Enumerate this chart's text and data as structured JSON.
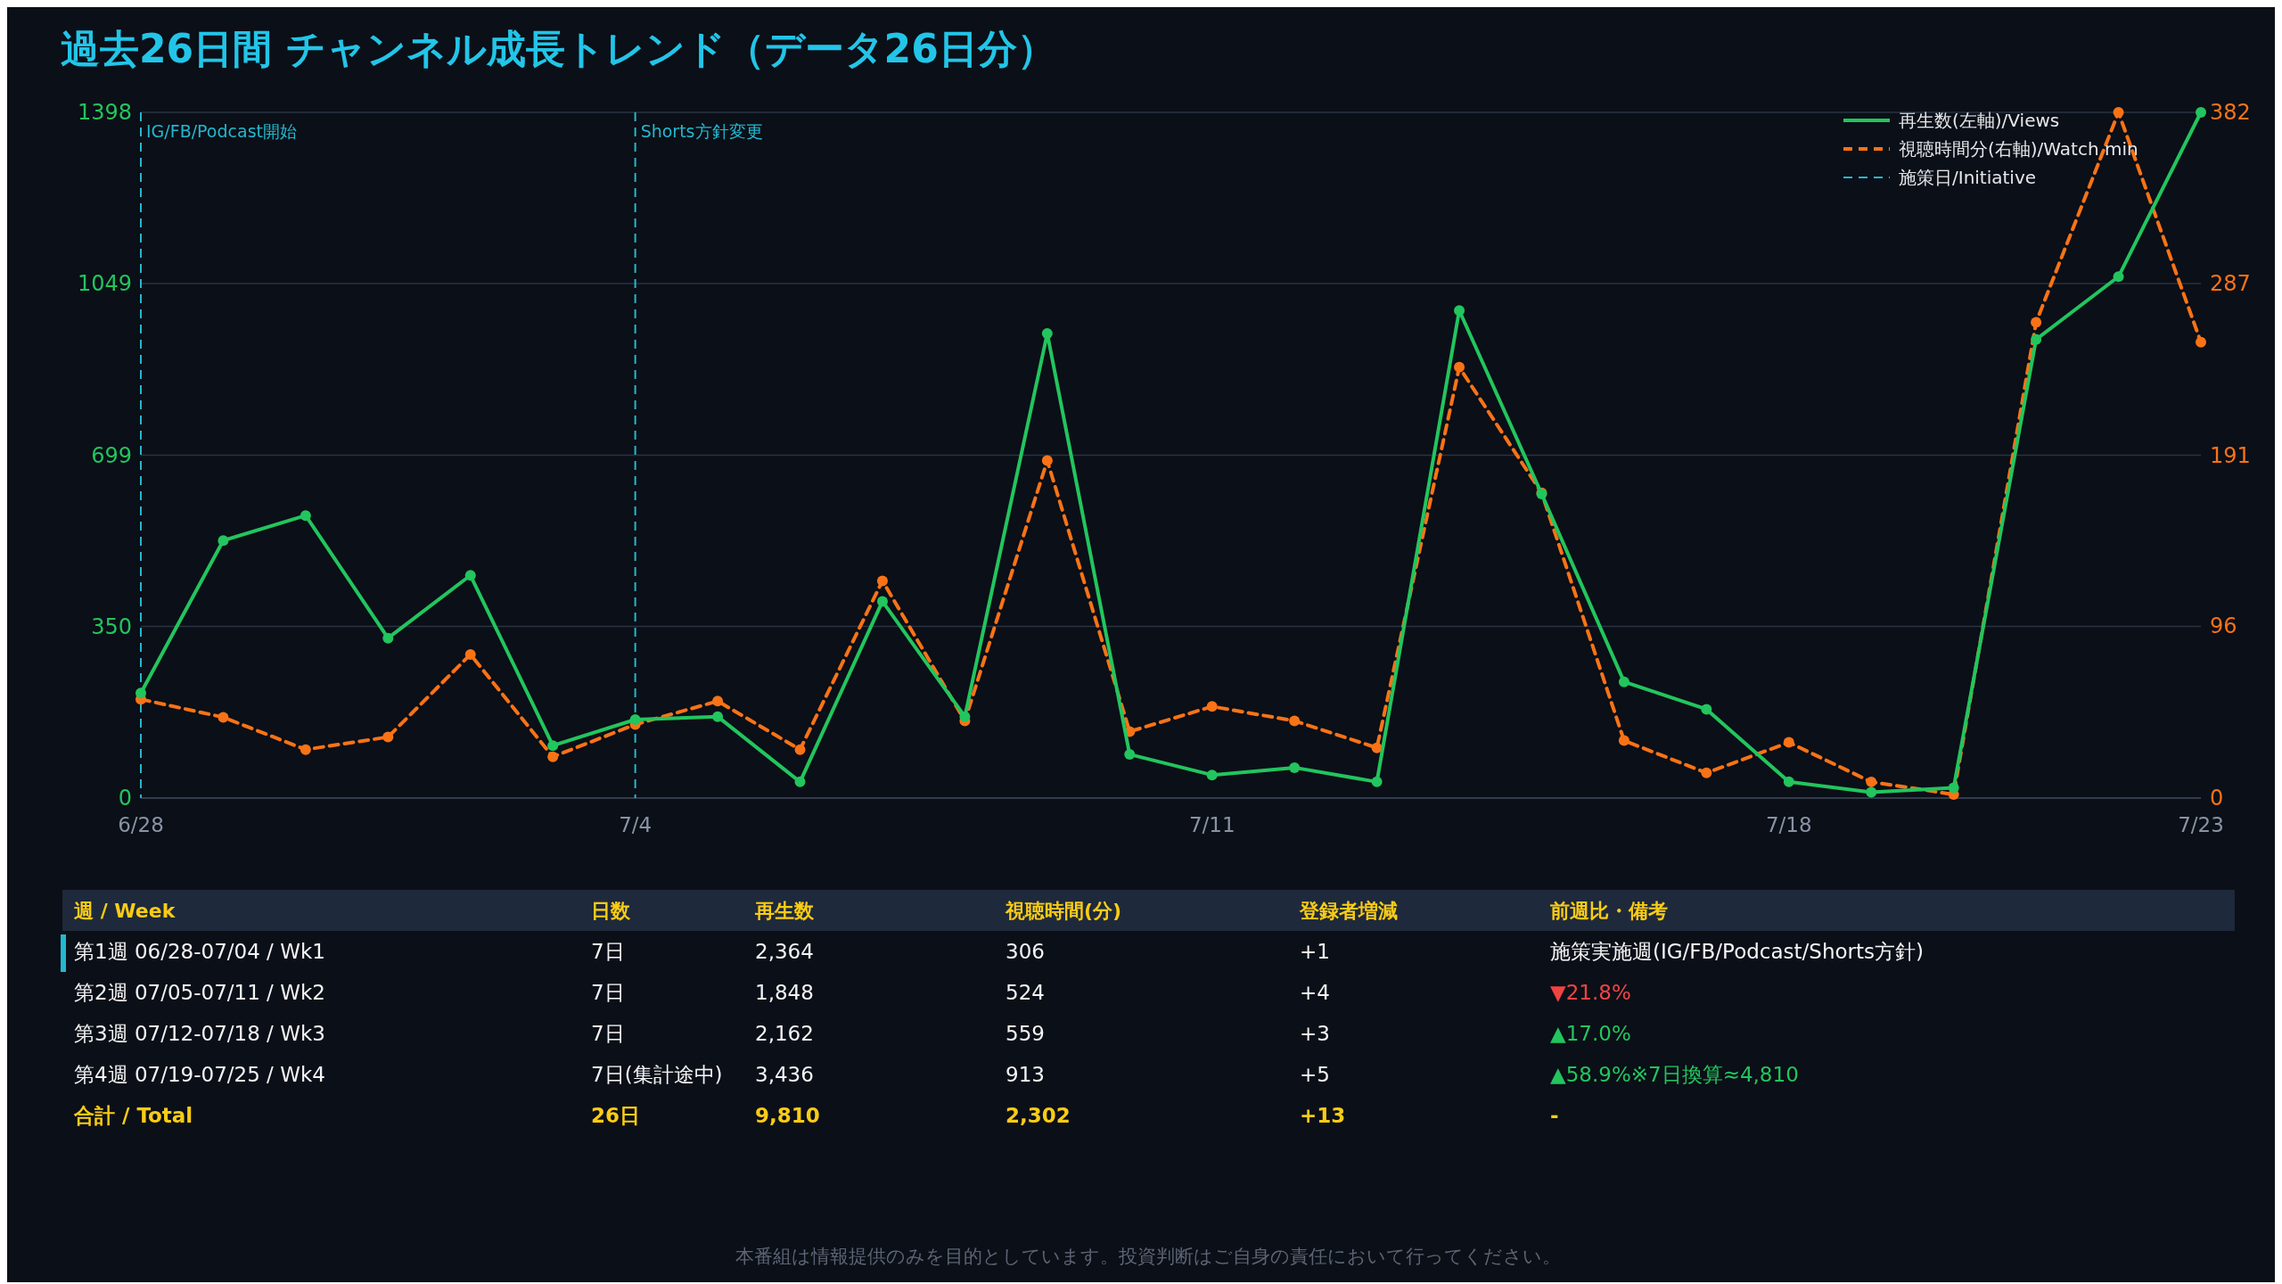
{
  "chart_data": [
    {
      "type": "line",
      "title": "過去26日間 チャンネル成長トレンド（データ26日分）",
      "x": [
        "--06-28",
        "--06-29",
        "--06-30",
        "--07-01",
        "--07-02",
        "--07-03",
        "--07-04",
        "--07-05",
        "--07-06",
        "--07-07",
        "--07-08",
        "--07-09",
        "--07-10",
        "--07-11",
        "--07-12",
        "--07-13",
        "--07-14",
        "--07-15",
        "--07-16",
        "--07-17",
        "--07-18",
        "--07-19",
        "--07-20",
        "--07-21",
        "--07-22",
        "--07-23"
      ],
      "series": [
        {
          "name": "再生数(左軸)/Views",
          "color": "#22c55e",
          "line_style": "solid",
          "values": [
            214,
            525,
            576,
            326,
            454,
            107,
            160,
            166,
            33,
            401,
            166,
            947,
            89,
            47,
            62,
            33,
            994,
            620,
            237,
            181,
            33,
            12,
            21,
            935,
            1063,
            1398
          ]
        },
        {
          "name": "視聴時間分(右軸)/Watch min",
          "color": "#f97316",
          "line_style": "dashed",
          "axis": "y2",
          "values": [
            55,
            45,
            27,
            34,
            80,
            23,
            41,
            54,
            27,
            121,
            43,
            188,
            37,
            51,
            43,
            28,
            240,
            170,
            32,
            14,
            31,
            9,
            2,
            265,
            382,
            254
          ]
        }
      ],
      "xlim": [
        "--06-28",
        "--07-23"
      ],
      "xticks": [
        {
          "value": "--06-28",
          "label": "6/28"
        },
        {
          "value": "--07-04",
          "label": "7/4"
        },
        {
          "value": "--07-11",
          "label": "7/11"
        },
        {
          "value": "--07-18",
          "label": "7/18"
        },
        {
          "value": "--07-23",
          "label": "7/23"
        }
      ],
      "ylim": [
        0,
        1398
      ],
      "yticks": [
        0,
        350,
        699,
        1049,
        1398
      ],
      "y2lim": [
        0,
        382
      ],
      "y2ticks": [
        0,
        96,
        191,
        287,
        382
      ],
      "ref_lines": [
        {
          "axis": "x",
          "value": "--06-28",
          "label": "IG/FB/Podcast開始",
          "color": "#22b8cf",
          "line_style": "dashed"
        },
        {
          "axis": "x",
          "value": "--07-04",
          "label": "Shorts方針変更",
          "color": "#22b8cf",
          "line_style": "dashed"
        }
      ],
      "annotations": [
        "施策日/Initiative",
        "本番組は情報提供のみを目的としています。投資判断はご自身の責任において行ってください。"
      ],
      "grid": "y",
      "legend": "top right",
      "marker": "circle"
    },
    {
      "type": "other",
      "categories": [
        "週 / Week",
        "日数",
        "再生数",
        "視聴時間(分)",
        "登録者増減",
        "前週比・備考"
      ],
      "annotations": [
        "第1週 06/28-07/04 / Wk1",
        "7日",
        "2,364",
        "306",
        "+1",
        "施策実施週(IG/FB/Podcast/Shorts方針)",
        "第2週 07/05-07/11 / Wk2",
        "7日",
        "1,848",
        "524",
        "+4",
        "▼21.8%",
        "第3週 07/12-07/18 / Wk3",
        "7日",
        "2,162",
        "559",
        "+3",
        "▲17.0%",
        "第4週 07/19-07/25 / Wk4",
        "7日(集計途中)",
        "3,436",
        "913",
        "+5",
        "▲58.9%※7日換算≈4,810",
        "合計 / Total",
        "26日",
        "9,810",
        "2,302",
        "+13",
        "-"
      ]
    }
  ]
}
